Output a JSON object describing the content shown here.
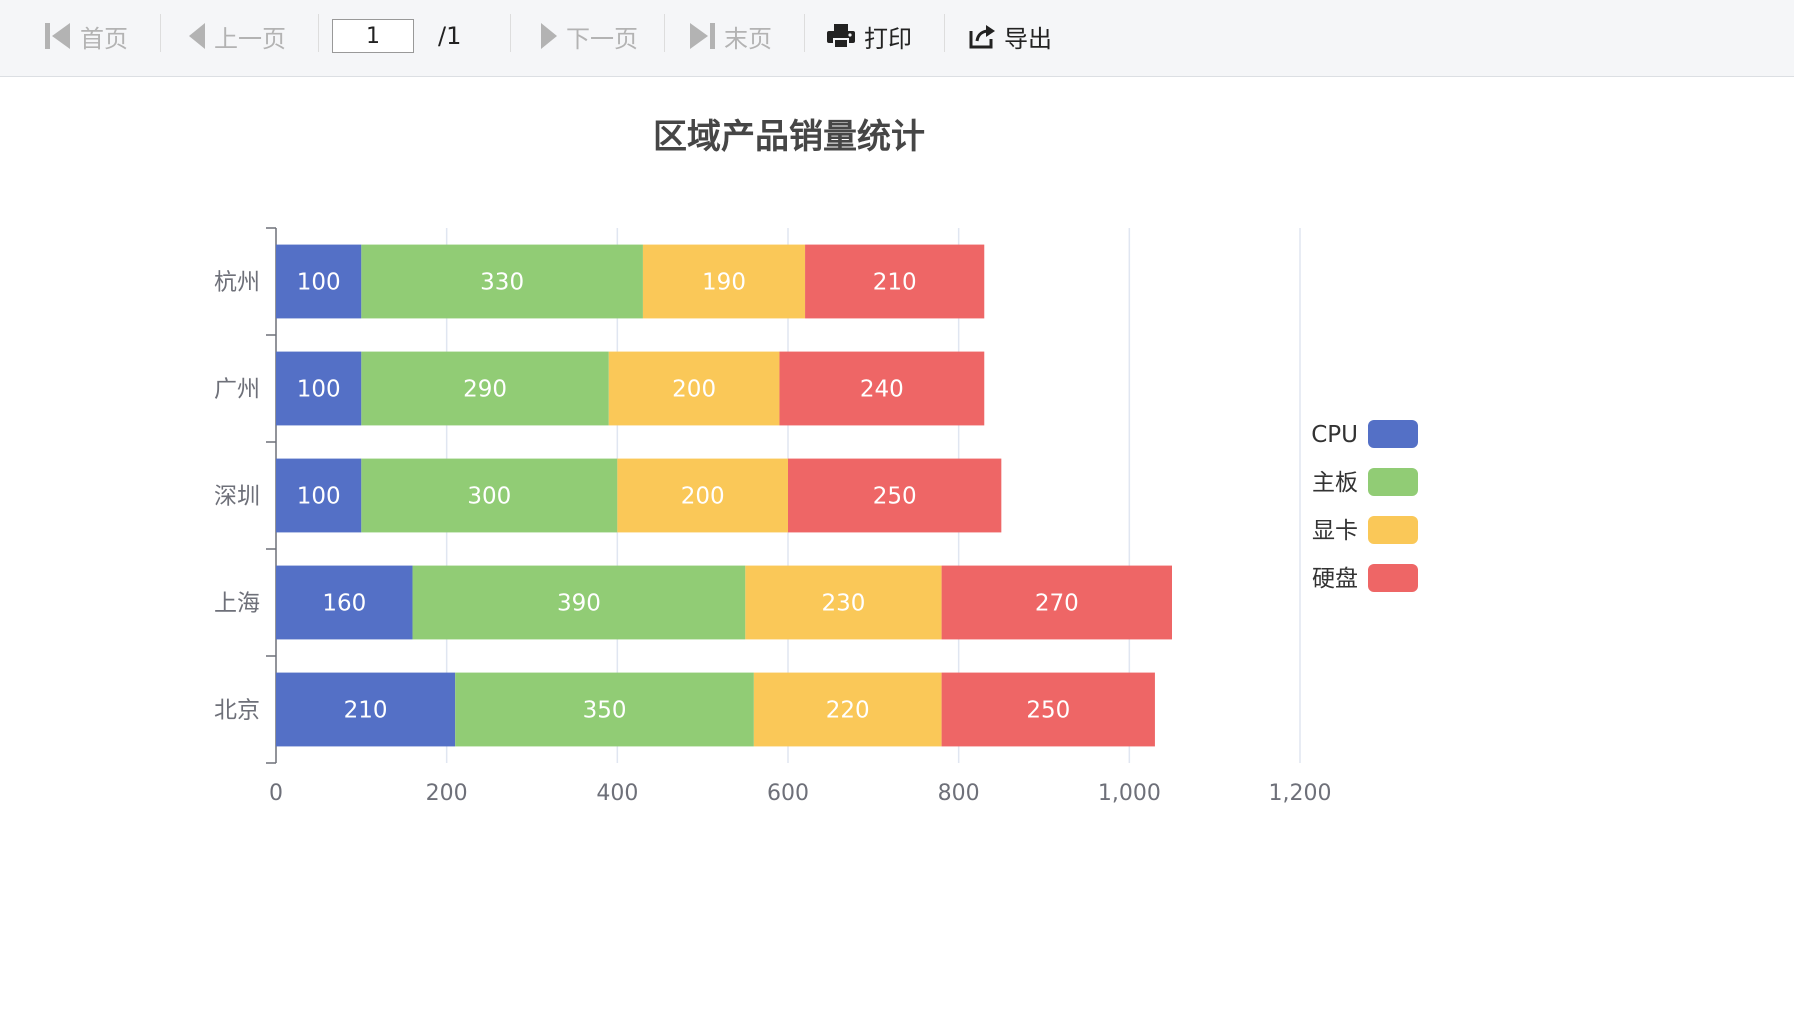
{
  "toolbar": {
    "first_label": "首页",
    "prev_label": "上一页",
    "page_value": "1",
    "page_total": "/1",
    "next_label": "下一页",
    "last_label": "末页",
    "print_label": "打印",
    "export_label": "导出"
  },
  "chart_data": {
    "type": "bar",
    "orientation": "horizontal",
    "stacked": true,
    "title": "区域产品销量统计",
    "categories": [
      "杭州",
      "广州",
      "深圳",
      "上海",
      "北京"
    ],
    "series": [
      {
        "name": "CPU",
        "color": "#5470c6",
        "values": [
          100,
          100,
          100,
          160,
          210
        ]
      },
      {
        "name": "主板",
        "color": "#91cc75",
        "values": [
          330,
          290,
          300,
          390,
          350
        ]
      },
      {
        "name": "显卡",
        "color": "#fac858",
        "values": [
          190,
          200,
          200,
          230,
          220
        ]
      },
      {
        "name": "硬盘",
        "color": "#ee6666",
        "values": [
          210,
          240,
          250,
          270,
          250
        ]
      }
    ],
    "xlim": [
      0,
      1200
    ],
    "xticks": [
      "0",
      "200",
      "400",
      "600",
      "800",
      "1,000",
      "1,200"
    ],
    "xtick_values": [
      0,
      200,
      400,
      600,
      800,
      1000,
      1200
    ],
    "grid": true,
    "legend_position": "right"
  }
}
